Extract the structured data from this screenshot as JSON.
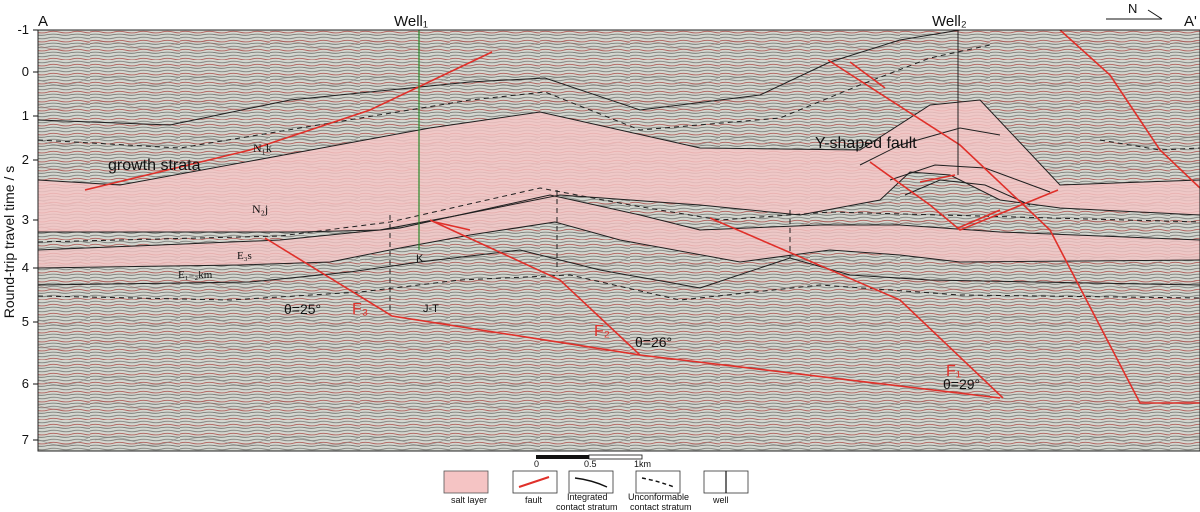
{
  "section": {
    "start_label": "A",
    "end_label": "A'",
    "north_label": "N"
  },
  "wells": [
    {
      "label": "Well₁"
    },
    {
      "label": "Well₂"
    }
  ],
  "y_axis": {
    "label": "Round-trip travel time / s",
    "ticks": [
      "-1",
      "0",
      "1",
      "2",
      "3",
      "4",
      "5",
      "6",
      "7"
    ]
  },
  "annotations": {
    "growth_strata": "growth strata",
    "y_fault": "Y-shaped fault",
    "n1k": "N₁k",
    "n2j": "N₂j",
    "e3s": "E₃s",
    "e12km": "E₁₋₂km",
    "k": "K",
    "jt": "J-T"
  },
  "faults": [
    {
      "name": "F₃",
      "angle": "θ=25°"
    },
    {
      "name": "F₂",
      "angle": "θ=26°"
    },
    {
      "name": "F₁",
      "angle": "θ=29°"
    }
  ],
  "scale_bar": {
    "ticks": [
      "0",
      "0.5",
      "1km"
    ]
  },
  "legend": {
    "salt": "salt layer",
    "fault": "fault",
    "integrated": [
      "Integrated",
      "contact stratum"
    ],
    "unconformable": [
      "Unconformable",
      "contact stratum"
    ],
    "well": "well"
  },
  "colors": {
    "salt": "#f5c4c4",
    "fault": "#e0302a",
    "well1": "#2a8a2a",
    "stratum": "#1f1f1f",
    "background": "#cfd3cb"
  }
}
